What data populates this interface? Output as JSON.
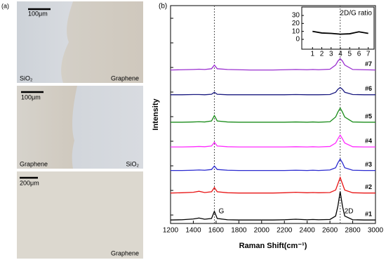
{
  "panel_a": {
    "label": "(a)",
    "images": [
      {
        "scale": "100μm",
        "left": "SiO₂",
        "right": "Graphene"
      },
      {
        "scale": "100μm",
        "left": "Graphene",
        "right": "SiO₂"
      },
      {
        "scale": "200μm",
        "right": "Graphene"
      }
    ]
  },
  "chart_data": {
    "type": "line",
    "panel_label": "(b)",
    "xlabel": "Raman Shift(cm⁻¹)",
    "ylabel": "Intensity",
    "xlim": [
      1200,
      3000
    ],
    "xticks": [
      1200,
      1400,
      1600,
      1800,
      2000,
      2200,
      2400,
      2600,
      2800,
      3000
    ],
    "ylim": [
      0,
      8.8
    ],
    "reference_lines": [
      1585,
      2690
    ],
    "annotations": [
      {
        "text": "G",
        "x": 1585
      },
      {
        "text": "2D",
        "x": 2690
      }
    ],
    "x": [
      1200,
      1300,
      1400,
      1450,
      1500,
      1560,
      1585,
      1610,
      1700,
      1800,
      1900,
      2000,
      2100,
      2200,
      2300,
      2400,
      2450,
      2500,
      2600,
      2650,
      2670,
      2690,
      2710,
      2730,
      2800,
      2900,
      3000
    ],
    "series": [
      {
        "name": "#1",
        "color": "#000000",
        "values": [
          0.14,
          0.15,
          0.18,
          0.22,
          0.17,
          0.2,
          0.49,
          0.2,
          0.15,
          0.14,
          0.14,
          0.14,
          0.14,
          0.15,
          0.17,
          0.15,
          0.16,
          0.15,
          0.16,
          0.3,
          0.7,
          1.29,
          0.7,
          0.3,
          0.15,
          0.14,
          0.14
        ]
      },
      {
        "name": "#2",
        "color": "#e81414",
        "values": [
          1.23,
          1.24,
          1.26,
          1.3,
          1.25,
          1.28,
          1.45,
          1.28,
          1.24,
          1.23,
          1.23,
          1.23,
          1.23,
          1.24,
          1.26,
          1.24,
          1.25,
          1.24,
          1.25,
          1.35,
          1.6,
          1.86,
          1.6,
          1.35,
          1.24,
          1.23,
          1.23
        ]
      },
      {
        "name": "#3",
        "color": "#2b2bd0",
        "values": [
          2.14,
          2.14,
          2.15,
          2.16,
          2.15,
          2.18,
          2.32,
          2.18,
          2.15,
          2.14,
          2.14,
          2.14,
          2.14,
          2.14,
          2.15,
          2.14,
          2.15,
          2.14,
          2.16,
          2.25,
          2.45,
          2.6,
          2.45,
          2.25,
          2.15,
          2.14,
          2.14
        ]
      },
      {
        "name": "#4",
        "color": "#ff2bff",
        "values": [
          3.09,
          3.09,
          3.1,
          3.11,
          3.1,
          3.13,
          3.28,
          3.13,
          3.1,
          3.09,
          3.09,
          3.09,
          3.09,
          3.09,
          3.1,
          3.09,
          3.1,
          3.09,
          3.11,
          3.25,
          3.42,
          3.57,
          3.42,
          3.25,
          3.1,
          3.09,
          3.09
        ]
      },
      {
        "name": "#5",
        "color": "#1a8c1a",
        "values": [
          4.09,
          4.09,
          4.1,
          4.11,
          4.1,
          4.14,
          4.36,
          4.14,
          4.1,
          4.09,
          4.09,
          4.09,
          4.09,
          4.09,
          4.1,
          4.09,
          4.1,
          4.09,
          4.11,
          4.3,
          4.5,
          4.66,
          4.5,
          4.3,
          4.1,
          4.09,
          4.09
        ]
      },
      {
        "name": "#6",
        "color": "#1a1a80",
        "values": [
          5.2,
          5.2,
          5.21,
          5.21,
          5.2,
          5.22,
          5.3,
          5.22,
          5.2,
          5.2,
          5.2,
          5.2,
          5.2,
          5.2,
          5.21,
          5.2,
          5.2,
          5.2,
          5.21,
          5.3,
          5.42,
          5.49,
          5.42,
          5.3,
          5.21,
          5.2,
          5.2
        ]
      },
      {
        "name": "#7",
        "color": "#9b30d0",
        "values": [
          6.2,
          6.21,
          6.22,
          6.23,
          6.22,
          6.25,
          6.4,
          6.25,
          6.22,
          6.21,
          6.2,
          6.2,
          6.2,
          6.21,
          6.22,
          6.21,
          6.22,
          6.21,
          6.23,
          6.4,
          6.56,
          6.66,
          6.56,
          6.4,
          6.22,
          6.21,
          6.2
        ]
      }
    ],
    "inset": {
      "type": "line",
      "title": "2D/G ratio",
      "x": [
        1,
        2,
        3,
        4,
        5,
        6,
        7
      ],
      "values": [
        10,
        8,
        7.5,
        6.5,
        7,
        9.5,
        7.5
      ],
      "color": "#000000",
      "xlim": [
        0.6,
        7.4
      ],
      "xticks": [
        1,
        2,
        3,
        4,
        5,
        6,
        7
      ],
      "ylim": [
        0,
        30
      ],
      "yticks": [
        0,
        10,
        20,
        30
      ]
    }
  }
}
